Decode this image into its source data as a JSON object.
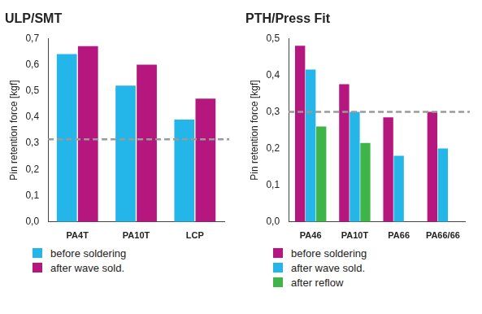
{
  "chart_data": [
    {
      "type": "bar",
      "title": "ULP/SMT",
      "y_label": "Pin retention force [kgf]",
      "categories": [
        "PA4T",
        "PA10T",
        "LCP"
      ],
      "series": [
        {
          "name": "before soldering",
          "color": "#25b6e9",
          "values": [
            0.64,
            0.52,
            0.39
          ]
        },
        {
          "name": "after wave sold.",
          "color": "#b5177f",
          "values": [
            0.67,
            0.6,
            0.47
          ]
        }
      ],
      "threshold": 0.315,
      "ylim": [
        0,
        0.7
      ],
      "yticks": [
        {
          "value": 0,
          "label": "0,0"
        },
        {
          "value": 0.1,
          "label": "0,1"
        },
        {
          "value": 0.2,
          "label": "0,2"
        },
        {
          "value": 0.3,
          "label": "0,3"
        },
        {
          "value": 0.4,
          "label": "0,4"
        },
        {
          "value": 0.5,
          "label": "0,5"
        },
        {
          "value": 0.6,
          "label": "0,6"
        },
        {
          "value": 0.7,
          "label": "0,7"
        }
      ],
      "grid": false,
      "legend": "bottom"
    },
    {
      "type": "bar",
      "title": "PTH/Press Fit",
      "y_label": "Pin retention force [kgf]",
      "categories": [
        "PA46",
        "PA10T",
        "PA66",
        "PA66/66"
      ],
      "series": [
        {
          "name": "before soldering",
          "color": "#b5177f",
          "values": [
            0.48,
            0.375,
            0.285,
            0.3
          ]
        },
        {
          "name": "after wave sold.",
          "color": "#25b6e9",
          "values": [
            0.415,
            0.3,
            0.18,
            0.2
          ]
        },
        {
          "name": "after reflow",
          "color": "#3fb549",
          "values": [
            0.26,
            0.215,
            null,
            null
          ]
        }
      ],
      "threshold": 0.3,
      "ylim": [
        0,
        0.5
      ],
      "yticks": [
        {
          "value": 0,
          "label": "0,0"
        },
        {
          "value": 0.1,
          "label": "0,1"
        },
        {
          "value": 0.2,
          "label": "0,2"
        },
        {
          "value": 0.3,
          "label": "0,3"
        },
        {
          "value": 0.4,
          "label": "0,4"
        },
        {
          "value": 0.5,
          "label": "0,5"
        }
      ],
      "grid": false,
      "legend": "bottom"
    }
  ]
}
